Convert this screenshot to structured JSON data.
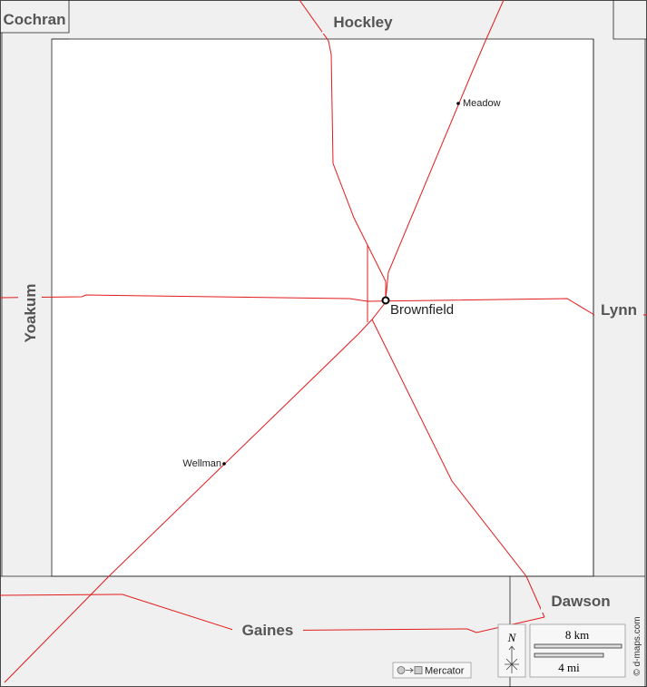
{
  "counties": [
    "Cochran",
    "Hockley",
    "Yoakum",
    "Lynn",
    "Gaines",
    "Dawson"
  ],
  "towns": [
    "Brownfield",
    "Meadow",
    "Wellman"
  ],
  "scale": {
    "km": "8 km",
    "mi": "4 mi"
  },
  "north": "N",
  "projection": "Mercator",
  "credit": "© d-maps.com"
}
